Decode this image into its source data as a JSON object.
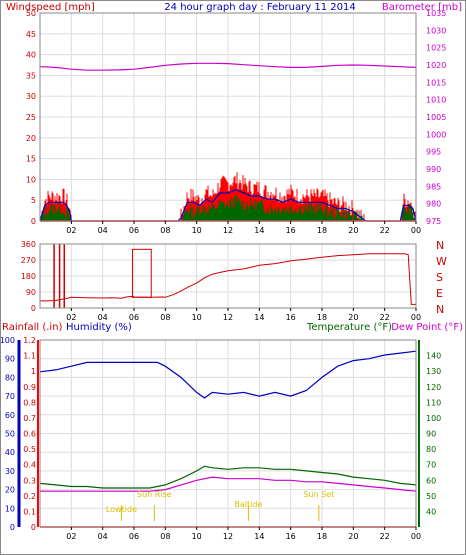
{
  "colors": {
    "frame": "#8a8a8a",
    "grid": "#dddddd",
    "red": "#ff0000",
    "dark_red": "#cc0000",
    "blue": "#0000c0",
    "green": "#006600",
    "magenta": "#cc00cc",
    "yellow": "#d8c000"
  },
  "header": {
    "left_title": "Windspeed [mph]",
    "center_title": "24 hour graph day : February 11 2014",
    "right_title": "Barometer [mb]"
  },
  "x_axis": {
    "ticks": [
      "02",
      "04",
      "06",
      "08",
      "10",
      "12",
      "14",
      "16",
      "18",
      "20",
      "22",
      "00"
    ]
  },
  "panels": {
    "wind": {
      "wind_ticks": [
        "50",
        "45",
        "40",
        "35",
        "30",
        "25",
        "20",
        "15",
        "10",
        "5",
        "0"
      ],
      "baro_ticks": [
        "1035",
        "1030",
        "1025",
        "1020",
        "1015",
        "1010",
        "1005",
        "1000",
        "995",
        "990",
        "985",
        "980",
        "975"
      ]
    },
    "direction": {
      "deg_ticks": [
        "360",
        "270",
        "180",
        "90",
        "0"
      ],
      "compass": [
        "N",
        "W",
        "S",
        "E",
        "N"
      ]
    },
    "bottom": {
      "rain_label": "Rainfall (.in)",
      "humidity_label": "Humidity (%)",
      "temperature_label": "Temperature (°F)",
      "dewpoint_label": "Dew Point (°F)",
      "humidity_ticks": [
        "100",
        "90",
        "80",
        "70",
        "60",
        "50",
        "40",
        "30",
        "20",
        "10",
        "0"
      ],
      "rain_ticks": [
        "1.2",
        "1.1",
        "1",
        "0.9",
        "0.8",
        "0.7",
        "0.6",
        "0.5",
        "0.4",
        "0.3",
        "0.2",
        "0.1",
        "0"
      ],
      "temp_ticks": [
        "140",
        "130",
        "120",
        "110",
        "100",
        "90",
        "80",
        "70",
        "60",
        "50",
        "40"
      ]
    }
  },
  "sun_markers": [
    {
      "label": "Lowtide",
      "hour": 5.2
    },
    {
      "label": "Sun Rise",
      "hour": 7.3
    },
    {
      "label": "Baltide",
      "hour": 13.3
    },
    {
      "label": "Sun Set",
      "hour": 17.8
    }
  ],
  "chart_data": [
    {
      "type": "line",
      "title": "24 hour graph day : February 11 2014",
      "xlabel": "",
      "ylabel": "Windspeed [mph]",
      "ylim": [
        0,
        50
      ],
      "y2label": "Barometer [mb]",
      "y2lim": [
        975,
        1035
      ],
      "x_unit": "hour",
      "xlim": [
        0,
        24
      ],
      "series": [
        {
          "x": [
            0,
            1,
            2,
            3,
            4,
            5,
            6,
            7,
            8,
            9,
            10,
            11,
            12,
            13,
            14,
            15,
            16,
            17,
            18,
            19,
            20,
            21,
            22,
            23,
            24
          ],
          "values": [
            1019.5,
            1019.3,
            1018.8,
            1018.5,
            1018.5,
            1018.6,
            1018.8,
            1019.3,
            1019.9,
            1020.3,
            1020.5,
            1020.5,
            1020.4,
            1020.1,
            1019.8,
            1019.5,
            1019.3,
            1019.3,
            1019.6,
            1019.9,
            1020.0,
            1019.9,
            1019.7,
            1019.5,
            1019.3
          ]
        },
        {
          "x": [
            0,
            0.3,
            0.6,
            1,
            1.3,
            1.5,
            1.7,
            1.9,
            2,
            3,
            4,
            5,
            6,
            7,
            8,
            8.4,
            8.8,
            9,
            9.4,
            9.8,
            10.2,
            10.6,
            11,
            11.5,
            12,
            12.5,
            13,
            13.5,
            14,
            14.5,
            15,
            15.5,
            16,
            16.5,
            17,
            17.5,
            18,
            18.5,
            19,
            19.5,
            20,
            20.5,
            20.8,
            21,
            22,
            23,
            23.2,
            23.5,
            23.8,
            24
          ],
          "values": [
            0,
            5,
            6,
            6,
            6,
            6,
            5,
            3,
            0,
            0,
            0,
            0,
            0,
            0,
            0,
            0,
            0,
            1,
            6,
            6,
            5,
            7,
            6,
            9,
            9,
            10,
            9,
            8,
            8,
            7,
            7,
            6,
            7,
            6,
            6,
            6,
            6,
            5,
            4,
            4,
            3,
            1,
            0,
            0,
            0,
            0,
            5,
            5,
            4,
            0
          ]
        },
        {
          "x": [
            0,
            0.3,
            0.6,
            1,
            1.3,
            1.5,
            1.7,
            1.9,
            2,
            3,
            4,
            5,
            6,
            7,
            8,
            8.4,
            8.8,
            9,
            9.4,
            9.8,
            10.2,
            10.6,
            11,
            11.5,
            12,
            12.5,
            13,
            13.5,
            14,
            14.5,
            15,
            15.5,
            16,
            16.5,
            17,
            17.5,
            18,
            18.5,
            19,
            19.5,
            20,
            20.5,
            20.8,
            21,
            22,
            23,
            23.2,
            23.5,
            23.8,
            24
          ],
          "values": [
            0,
            2,
            3,
            3,
            3,
            3,
            2,
            1,
            0,
            0,
            0,
            0,
            0,
            0,
            0,
            0,
            0,
            0,
            3,
            2,
            3,
            3,
            3,
            4,
            4,
            5,
            4,
            4,
            4,
            3,
            3,
            3,
            3,
            3,
            3,
            3,
            3,
            2,
            2,
            2,
            1,
            1,
            0,
            0,
            0,
            0,
            2,
            3,
            2,
            0
          ]
        }
      ]
    },
    {
      "type": "line",
      "title": "",
      "ylabel": "",
      "ylim": [
        0,
        360
      ],
      "x_unit": "hour",
      "xlim": [
        0,
        24
      ],
      "series": [
        {
          "x": [
            0,
            0.5,
            1,
            1.3,
            1.6,
            2,
            3,
            4,
            4.6,
            5.2,
            5.5,
            5.9,
            6,
            7,
            7.8,
            8,
            8.5,
            9,
            9.5,
            10,
            10.5,
            11,
            11.5,
            12,
            13,
            14,
            15,
            16,
            17,
            18,
            19,
            20,
            21,
            22,
            23,
            23.3,
            23.5,
            23.7,
            24
          ],
          "values": [
            40,
            40,
            42,
            48,
            52,
            60,
            58,
            56,
            58,
            55,
            62,
            65,
            62,
            60,
            62,
            60,
            75,
            95,
            120,
            140,
            170,
            190,
            200,
            210,
            220,
            240,
            250,
            265,
            275,
            285,
            295,
            300,
            305,
            305,
            305,
            305,
            300,
            20,
            20
          ]
        }
      ]
    },
    {
      "type": "line",
      "title": "",
      "xlabel": "",
      "ylabel": "Humidity (%)",
      "ylim": [
        0,
        100
      ],
      "y_right_label": "Temperature (°F)",
      "y_right_lim": [
        30,
        150
      ],
      "y_rain_label": "Rainfall (.in)",
      "y_rain_lim": [
        0,
        1.2
      ],
      "x_unit": "hour",
      "xlim": [
        0,
        24
      ],
      "series": [
        {
          "name": "Humidity (%)",
          "x": [
            0,
            1,
            2,
            3,
            4,
            5,
            6,
            7,
            7.5,
            8,
            9,
            10,
            10.5,
            11,
            12,
            13,
            14,
            15,
            16,
            17,
            18,
            19,
            20,
            21,
            22,
            23,
            24
          ],
          "values": [
            83,
            84,
            86,
            88,
            88,
            88,
            88,
            88,
            88,
            86,
            80,
            72,
            69,
            72,
            71,
            72,
            70,
            72,
            70,
            73,
            80,
            86,
            89,
            90,
            92,
            93,
            94
          ]
        },
        {
          "name": "Temperature (°F)",
          "x": [
            0,
            1,
            2,
            3,
            4,
            5,
            6,
            7,
            8,
            9,
            10,
            10.5,
            11,
            12,
            13,
            14,
            15,
            16,
            17,
            18,
            19,
            20,
            21,
            22,
            23,
            24
          ],
          "values": [
            58,
            57,
            56,
            56,
            55,
            55,
            55,
            55,
            57,
            61,
            66,
            69,
            68,
            67,
            68,
            68,
            67,
            67,
            66,
            65,
            64,
            62,
            61,
            60,
            58,
            57
          ]
        },
        {
          "name": "Dew Point (°F)",
          "x": [
            0,
            1,
            2,
            3,
            4,
            5,
            6,
            7,
            8,
            9,
            10,
            11,
            12,
            13,
            14,
            15,
            16,
            17,
            18,
            19,
            20,
            21,
            22,
            23,
            24
          ],
          "values": [
            53,
            53,
            53,
            53,
            53,
            53,
            53,
            53,
            54,
            57,
            60,
            62,
            61,
            61,
            61,
            60,
            60,
            59,
            59,
            58,
            57,
            56,
            55,
            54,
            53
          ]
        },
        {
          "name": "Rainfall (.in)",
          "x": [
            0,
            24
          ],
          "values": [
            0,
            0
          ]
        }
      ]
    }
  ]
}
